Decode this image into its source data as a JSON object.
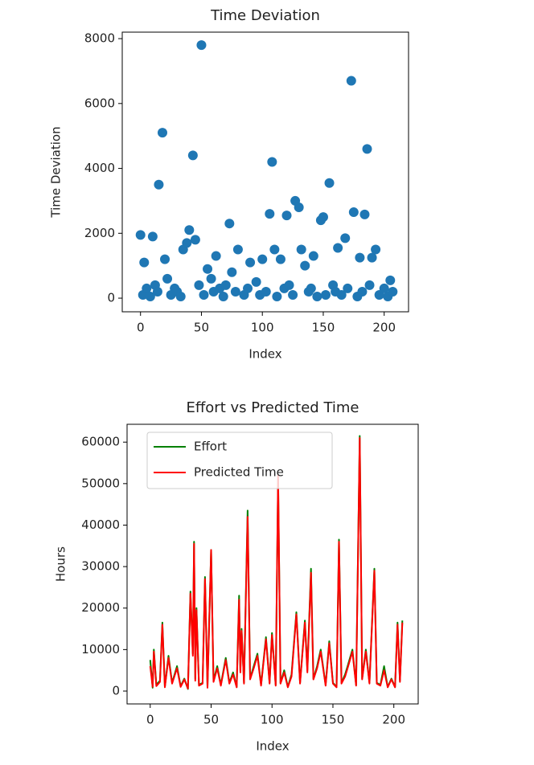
{
  "chart_data": [
    {
      "type": "scatter",
      "title": "Time Deviation",
      "x_label": "Index",
      "y_label": "Time Deviation",
      "color": "#1f77b4",
      "grid": false,
      "xlim": [
        -15,
        220
      ],
      "ylim": [
        -420,
        8200
      ],
      "xticks": [
        0,
        50,
        100,
        150,
        200
      ],
      "yticks": [
        0,
        2000,
        4000,
        6000,
        8000
      ],
      "x": [
        0,
        3,
        10,
        15,
        18,
        20,
        35,
        38,
        40,
        43,
        45,
        50,
        55,
        62,
        73,
        75,
        80,
        90,
        100,
        106,
        108,
        110,
        115,
        120,
        127,
        130,
        132,
        135,
        142,
        148,
        150,
        155,
        162,
        168,
        173,
        175,
        180,
        184,
        186,
        190,
        193,
        205,
        2,
        5,
        8,
        12,
        14,
        22,
        25,
        28,
        30,
        33,
        48,
        52,
        58,
        60,
        65,
        68,
        70,
        78,
        85,
        88,
        95,
        98,
        103,
        112,
        118,
        122,
        125,
        138,
        140,
        145,
        152,
        158,
        160,
        165,
        170,
        178,
        182,
        188,
        196,
        200,
        203,
        207
      ],
      "values": [
        1950,
        1100,
        1900,
        3500,
        5100,
        1200,
        1500,
        1700,
        2100,
        4400,
        1800,
        7800,
        900,
        1300,
        2300,
        800,
        1500,
        1100,
        1200,
        2600,
        4200,
        1500,
        1200,
        2550,
        3000,
        2800,
        1500,
        1000,
        1300,
        2400,
        2500,
        3550,
        1550,
        1850,
        6700,
        2650,
        1250,
        2580,
        4600,
        1250,
        1500,
        550,
        100,
        300,
        50,
        400,
        200,
        600,
        100,
        300,
        200,
        50,
        400,
        100,
        600,
        200,
        300,
        50,
        400,
        200,
        100,
        300,
        500,
        100,
        200,
        50,
        300,
        400,
        100,
        200,
        300,
        50,
        100,
        400,
        200,
        100,
        300,
        50,
        200,
        400,
        100,
        300,
        50,
        200
      ]
    },
    {
      "type": "line",
      "title": "Effort vs Predicted Time",
      "x_label": "Index",
      "y_label": "Hours",
      "grid": false,
      "legend": "upper left",
      "xlim": [
        -19,
        220
      ],
      "ylim": [
        -3100,
        64300
      ],
      "xticks": [
        0,
        50,
        100,
        150,
        200
      ],
      "yticks": [
        0,
        10000,
        20000,
        30000,
        40000,
        50000,
        60000
      ],
      "x": [
        0,
        2,
        3,
        5,
        8,
        10,
        12,
        15,
        18,
        22,
        25,
        28,
        31,
        33,
        35,
        36,
        37,
        38,
        40,
        43,
        45,
        47,
        50,
        52,
        55,
        58,
        62,
        65,
        68,
        71,
        73,
        74,
        75,
        77,
        80,
        82,
        85,
        88,
        91,
        95,
        98,
        100,
        103,
        105,
        107,
        110,
        113,
        116,
        120,
        123,
        127,
        129,
        132,
        134,
        137,
        140,
        144,
        147,
        150,
        153,
        155,
        157,
        160,
        162,
        166,
        169,
        172,
        174,
        177,
        180,
        184,
        186,
        189,
        192,
        195,
        198,
        201,
        203,
        205,
        207
      ],
      "series": [
        {
          "name": "Effort",
          "color": "#008000",
          "values": [
            7500,
            800,
            10000,
            1500,
            2500,
            16500,
            1000,
            8500,
            2000,
            6000,
            1200,
            3000,
            500,
            24000,
            9000,
            36000,
            3000,
            20000,
            1500,
            2000,
            27500,
            1000,
            34000,
            2500,
            6000,
            1500,
            8000,
            2000,
            4500,
            1000,
            23000,
            5000,
            15000,
            2000,
            43500,
            3000,
            6000,
            9000,
            1500,
            13000,
            2000,
            14000,
            1500,
            51000,
            2000,
            5000,
            1000,
            4000,
            19000,
            2000,
            17000,
            5000,
            29500,
            3000,
            6000,
            10000,
            1500,
            12000,
            2000,
            1000,
            36500,
            2000,
            4000,
            6000,
            10000,
            1500,
            61500,
            3000,
            10000,
            2000,
            29500,
            2000,
            1500,
            6000,
            1000,
            3000,
            1000,
            16500,
            2500,
            17000
          ]
        },
        {
          "name": "Predicted Time",
          "color": "#ff0000",
          "values": [
            6000,
            1000,
            9500,
            1200,
            2200,
            16000,
            900,
            8000,
            1800,
            5500,
            1000,
            2800,
            600,
            23500,
            8500,
            35500,
            2500,
            19500,
            1300,
            1800,
            27000,
            800,
            34000,
            2200,
            5500,
            1300,
            7500,
            1800,
            4000,
            900,
            22000,
            4500,
            14500,
            1800,
            42000,
            2800,
            5500,
            8500,
            1300,
            12500,
            1800,
            13500,
            1300,
            52000,
            1800,
            4500,
            900,
            3500,
            18500,
            1800,
            16500,
            4500,
            28500,
            2800,
            5500,
            9500,
            1300,
            11500,
            1800,
            900,
            36000,
            1800,
            3500,
            5500,
            9500,
            1300,
            61000,
            2800,
            9500,
            1800,
            29000,
            1800,
            1300,
            5000,
            900,
            2800,
            900,
            16000,
            2200,
            16500
          ]
        }
      ]
    }
  ]
}
